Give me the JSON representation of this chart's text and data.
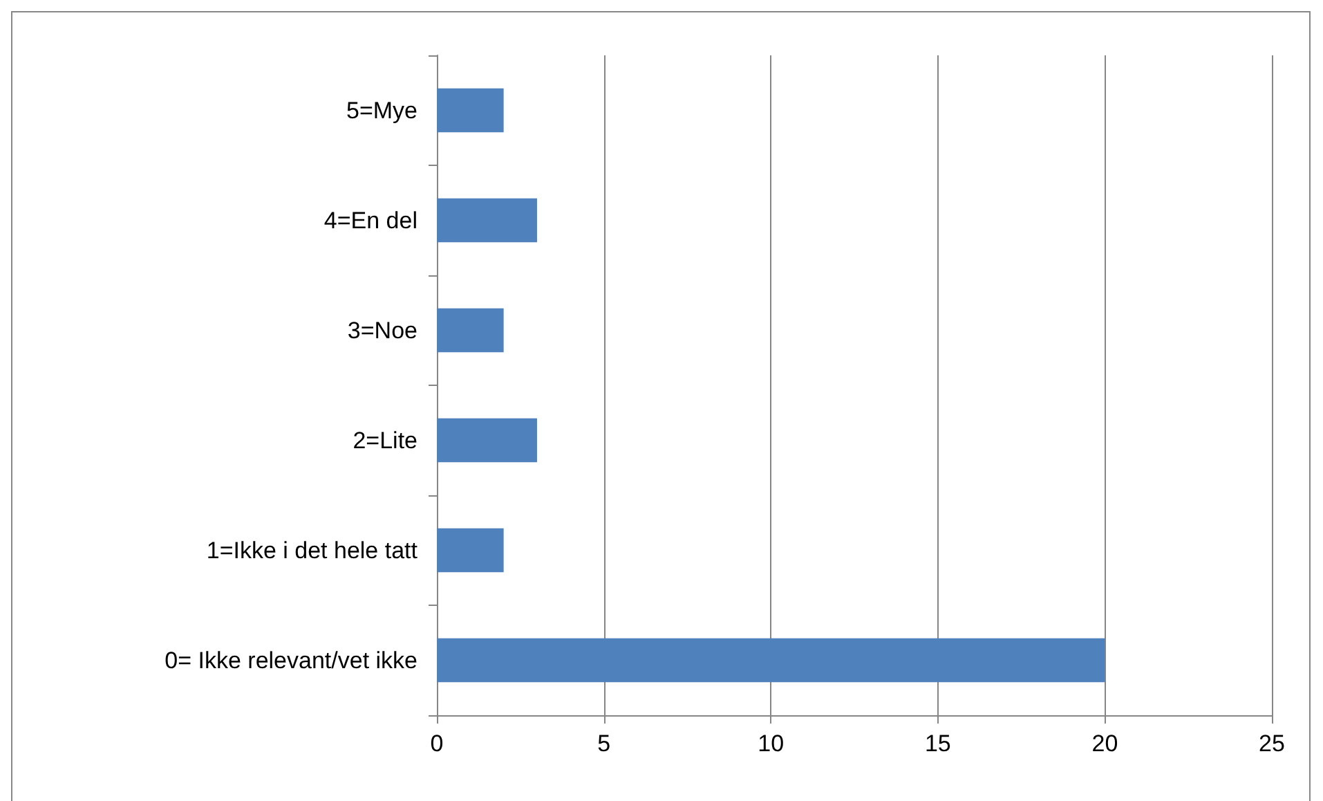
{
  "chart_data": {
    "type": "bar",
    "orientation": "horizontal",
    "categories": [
      "5=Mye",
      "4=En del",
      "3=Noe",
      "2=Lite",
      "1=Ikke i det hele tatt",
      "0= Ikke relevant/vet ikke"
    ],
    "values": [
      2,
      3,
      2,
      3,
      2,
      20
    ],
    "color": "#4f81bd",
    "xlim": [
      0,
      25
    ],
    "xticks": [
      0,
      5,
      10,
      15,
      20,
      25
    ],
    "grid": "x"
  }
}
